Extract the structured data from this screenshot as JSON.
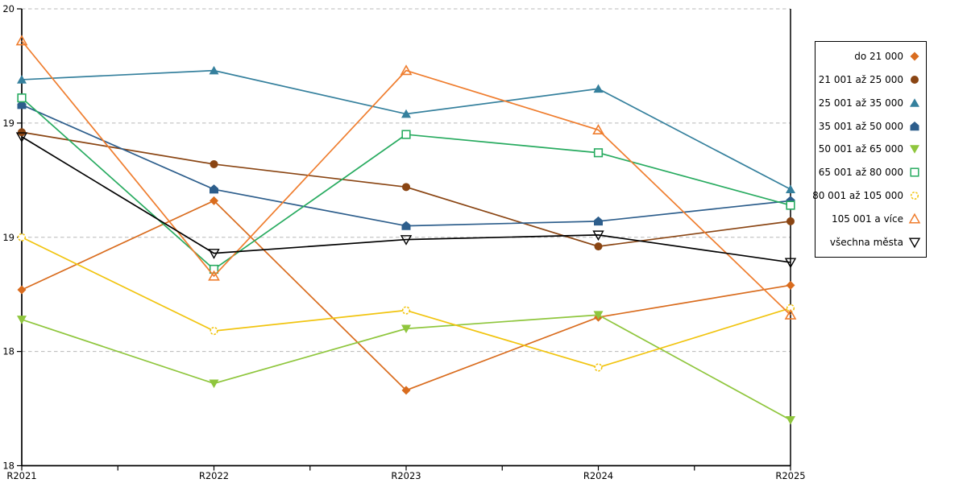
{
  "chart_data": {
    "type": "line",
    "title": "",
    "xlabel": "",
    "ylabel": "",
    "x": [
      "R2021",
      "R2022",
      "R2023",
      "R2024",
      "R2025"
    ],
    "ylim": [
      18,
      20
    ],
    "y_ticks": [
      {
        "value": 20,
        "label": "20"
      },
      {
        "value": 19.5,
        "label": "19"
      },
      {
        "value": 19,
        "label": "19"
      },
      {
        "value": 18.5,
        "label": "18"
      },
      {
        "value": 18,
        "label": "18"
      }
    ],
    "grid": "horizontal-dashed",
    "legend_position": "right",
    "series": [
      {
        "name": "do 21 000",
        "color": "#d96c1e",
        "marker": "diamond",
        "filled": true,
        "values": [
          18.77,
          19.16,
          18.33,
          18.65,
          18.79
        ]
      },
      {
        "name": "21 001 až 25 000",
        "color": "#8a4513",
        "marker": "circle",
        "filled": true,
        "values": [
          19.46,
          19.32,
          19.22,
          18.96,
          19.07
        ]
      },
      {
        "name": "25 001 až 35 000",
        "color": "#35809d",
        "marker": "triangle-up",
        "filled": true,
        "values": [
          19.69,
          19.73,
          19.54,
          19.65,
          19.21
        ]
      },
      {
        "name": "35 001 až 50 000",
        "color": "#2d5e8c",
        "marker": "pentagon",
        "filled": true,
        "values": [
          19.58,
          19.21,
          19.05,
          19.07,
          19.16
        ]
      },
      {
        "name": "50 001 až 65 000",
        "color": "#8fc63d",
        "marker": "triangle-down",
        "filled": true,
        "values": [
          18.64,
          18.36,
          18.6,
          18.66,
          18.2
        ]
      },
      {
        "name": "65 001 až 80 000",
        "color": "#28ab60",
        "marker": "square",
        "filled": false,
        "values": [
          19.61,
          18.86,
          19.45,
          19.37,
          19.14
        ]
      },
      {
        "name": "80 001 až 105 000",
        "color": "#f1c40f",
        "marker": "circle",
        "filled": false,
        "values": [
          19.0,
          18.59,
          18.68,
          18.43,
          18.69
        ]
      },
      {
        "name": "105 001 a více",
        "color": "#ef7d2e",
        "marker": "triangle-up",
        "filled": false,
        "values": [
          19.86,
          18.83,
          19.73,
          19.47,
          18.66
        ]
      },
      {
        "name": "všechna města",
        "color": "#000000",
        "marker": "triangle-down",
        "filled": false,
        "values": [
          19.44,
          18.93,
          18.99,
          19.01,
          18.89
        ]
      }
    ],
    "colors": {
      "axis": "#000000",
      "grid": "#b8b8b8",
      "background": "#ffffff"
    }
  }
}
